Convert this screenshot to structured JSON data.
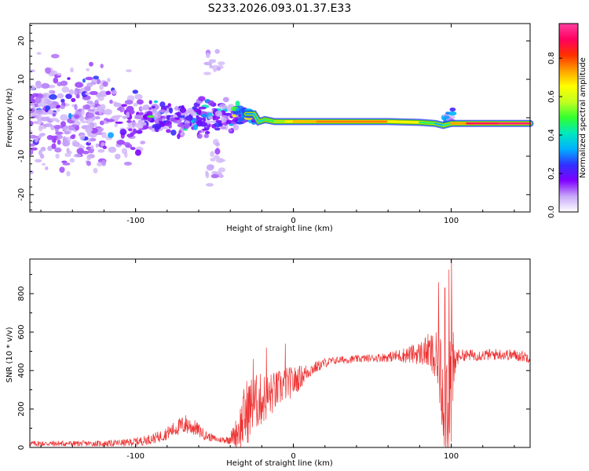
{
  "title": "S233.2026.093.01.37.E33",
  "colors": {
    "snr_line": "#ee3333",
    "track_core": "#ee2a2a",
    "track_outer": "#22cc22",
    "speckle_dark": "#6a11dd",
    "speckle_light": "#d2b8f8",
    "frame": "#000000"
  },
  "chart_data": [
    {
      "type": "heatmap",
      "name": "spectrogram",
      "xlabel": "Height of straight line (km)",
      "ylabel": "Frequency (Hz)",
      "xlim": [
        -167,
        150
      ],
      "ylim": [
        -24.5,
        24.5
      ],
      "xticks": [
        -100,
        0,
        100
      ],
      "xtick_labels": [
        "-100",
        "0",
        "100"
      ],
      "yticks": [
        20,
        10,
        0,
        -10,
        -20
      ],
      "ytick_labels": [
        "20",
        "10",
        "0",
        "-10",
        "-20"
      ],
      "colorbar": {
        "label": "Normalized spectral amplitude",
        "range": [
          0,
          0.98
        ],
        "ticks": [
          0.0,
          0.2,
          0.4,
          0.6,
          0.8
        ],
        "tick_labels": [
          "0.0",
          "0.2",
          "0.4",
          "0.6",
          "0.8"
        ],
        "colormap": [
          "#ffffff",
          "#c8a8f8",
          "#8000ff",
          "#3030ff",
          "#00b0ff",
          "#00e8c0",
          "#30ff30",
          "#c0ff20",
          "#ffff00",
          "#ffa000",
          "#ff3000",
          "#ff0060",
          "#ff40a0"
        ]
      },
      "ridge": [
        {
          "x": -30,
          "y": 1.0,
          "a": 0.3
        },
        {
          "x": -25,
          "y": 1.0,
          "a": 0.35
        },
        {
          "x": -22,
          "y": -1.0,
          "a": 0.4
        },
        {
          "x": -18,
          "y": -0.5,
          "a": 0.45
        },
        {
          "x": -12,
          "y": -1.0,
          "a": 0.5
        },
        {
          "x": -5,
          "y": -1.0,
          "a": 0.6
        },
        {
          "x": 0,
          "y": -1.0,
          "a": 0.7
        },
        {
          "x": 15,
          "y": -1.0,
          "a": 0.75
        },
        {
          "x": 40,
          "y": -1.0,
          "a": 0.8
        },
        {
          "x": 60,
          "y": -1.0,
          "a": 0.75
        },
        {
          "x": 80,
          "y": -1.2,
          "a": 0.55
        },
        {
          "x": 90,
          "y": -1.5,
          "a": 0.4
        },
        {
          "x": 95,
          "y": -2.0,
          "a": 0.3
        },
        {
          "x": 100,
          "y": -1.5,
          "a": 0.6
        },
        {
          "x": 110,
          "y": -1.5,
          "a": 0.9
        },
        {
          "x": 130,
          "y": -1.5,
          "a": 0.95
        },
        {
          "x": 150,
          "y": -1.5,
          "a": 0.95
        }
      ],
      "noise_clusters": [
        {
          "x": [
            -167,
            -120
          ],
          "y_center": 0,
          "y_spread": 24,
          "density": 280,
          "amp": 0.08
        },
        {
          "x": [
            -120,
            -95
          ],
          "y_center": -1,
          "y_spread": 18,
          "density": 80,
          "amp": 0.1
        },
        {
          "x": [
            -95,
            -60
          ],
          "y_center": 0,
          "y_spread": 7,
          "density": 140,
          "amp": 0.14
        },
        {
          "x": [
            -60,
            -35
          ],
          "y_center": 0,
          "y_spread": 9,
          "density": 90,
          "amp": 0.12
        },
        {
          "x": [
            -55,
            -45
          ],
          "y_center": -12,
          "y_spread": 10,
          "density": 20,
          "amp": 0.05
        },
        {
          "x": [
            -55,
            -45
          ],
          "y_center": 14,
          "y_spread": 9,
          "density": 15,
          "amp": 0.05
        },
        {
          "x": [
            -38,
            -25
          ],
          "y_center": 1,
          "y_spread": 4,
          "density": 40,
          "amp": 0.2
        },
        {
          "x": [
            95,
            101
          ],
          "y_center": 0,
          "y_spread": 3.5,
          "density": 18,
          "amp": 0.2
        }
      ]
    },
    {
      "type": "line",
      "name": "snr",
      "xlabel": "Height of straight line (km)",
      "ylabel": "SNR (10 * v/v)",
      "xlim": [
        -167,
        150
      ],
      "ylim": [
        0,
        980
      ],
      "xticks": [
        -100,
        0,
        100
      ],
      "xtick_labels": [
        "-100",
        "0",
        "100"
      ],
      "yticks": [
        0,
        200,
        400,
        600,
        800
      ],
      "ytick_labels": [
        "0",
        "200",
        "400",
        "600",
        "800"
      ],
      "envelope": {
        "x": [
          -167,
          -140,
          -120,
          -105,
          -95,
          -85,
          -80,
          -72,
          -68,
          -62,
          -55,
          -48,
          -42,
          -38,
          -34,
          -30,
          -25,
          -20,
          -15,
          -10,
          -5,
          0,
          5,
          10,
          15,
          20,
          25,
          30,
          40,
          50,
          60,
          70,
          80,
          85,
          88,
          92,
          95,
          98,
          100,
          103,
          105,
          110,
          120,
          130,
          140,
          150
        ],
        "mean": [
          20,
          20,
          20,
          25,
          35,
          55,
          75,
          110,
          120,
          100,
          60,
          40,
          40,
          60,
          100,
          180,
          230,
          250,
          270,
          300,
          330,
          340,
          370,
          400,
          420,
          440,
          450,
          455,
          460,
          465,
          470,
          480,
          490,
          500,
          480,
          400,
          300,
          300,
          300,
          460,
          480,
          480,
          480,
          485,
          480,
          470
        ],
        "amp": [
          15,
          15,
          15,
          20,
          25,
          30,
          35,
          45,
          55,
          40,
          25,
          15,
          20,
          50,
          120,
          180,
          150,
          140,
          120,
          100,
          90,
          80,
          60,
          40,
          30,
          25,
          20,
          20,
          20,
          20,
          25,
          40,
          60,
          90,
          120,
          200,
          300,
          400,
          380,
          60,
          30,
          30,
          30,
          30,
          30,
          30
        ]
      },
      "peaks": [
        {
          "x": 100.2,
          "y": 980
        },
        {
          "x": 98.5,
          "y": 925
        },
        {
          "x": 92.0,
          "y": 860
        },
        {
          "x": 96.0,
          "y": 830
        },
        {
          "x": -25.5,
          "y": 460
        },
        {
          "x": -17.0,
          "y": 520
        },
        {
          "x": -5.0,
          "y": 540
        },
        {
          "x": 100.0,
          "y": 30
        }
      ]
    }
  ]
}
